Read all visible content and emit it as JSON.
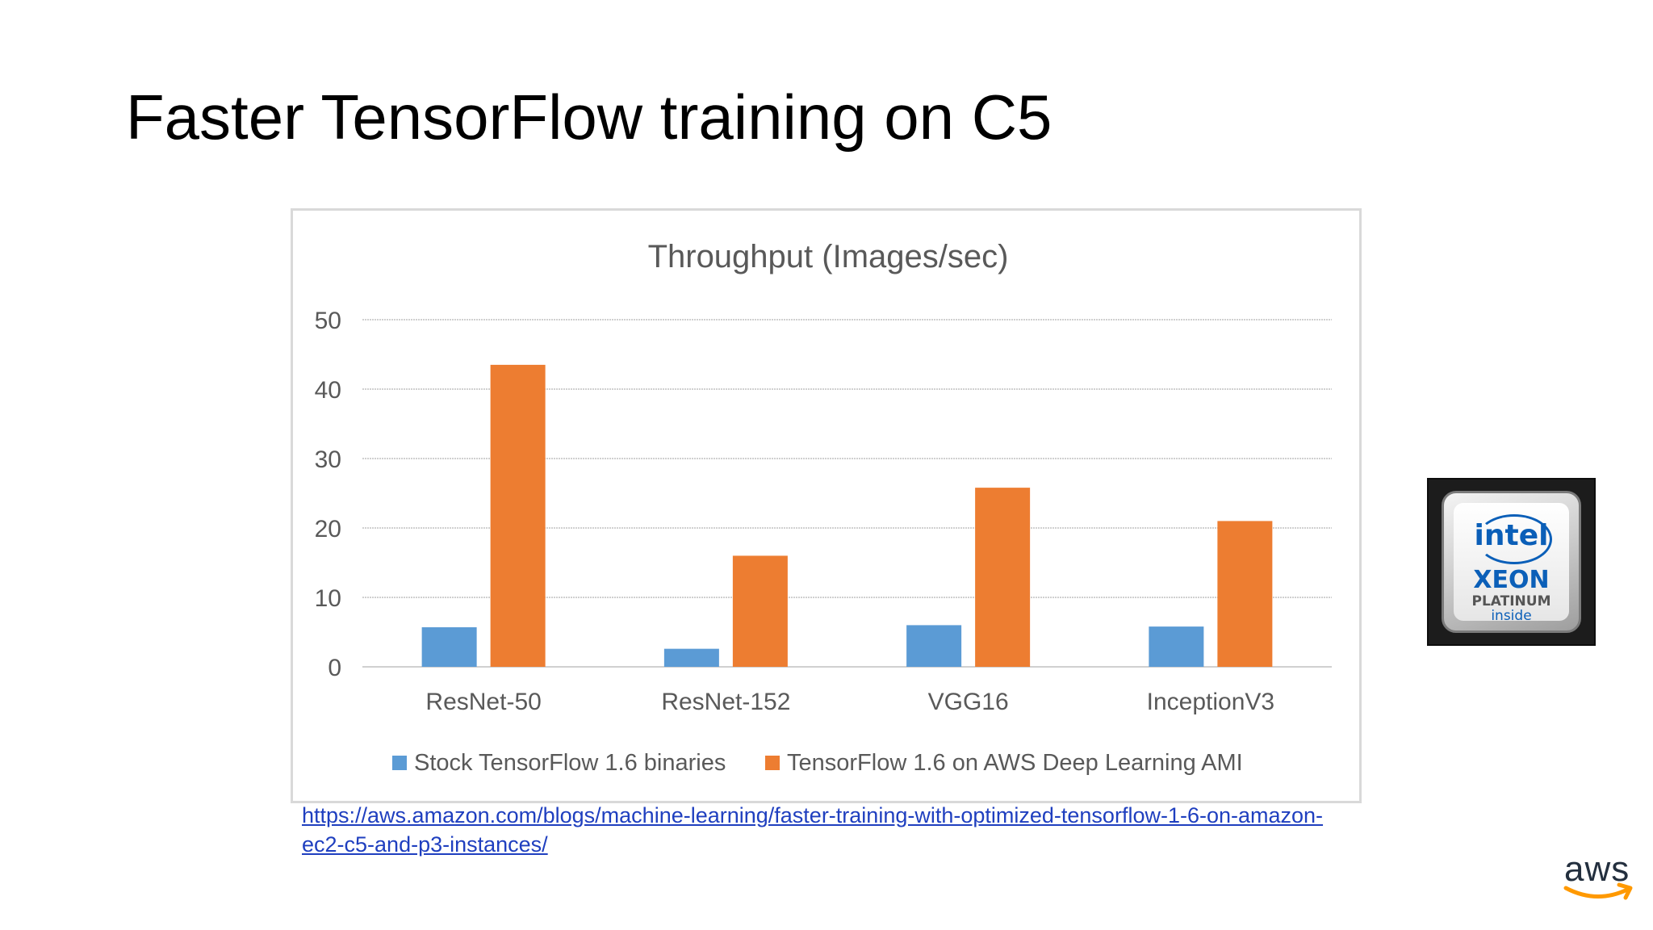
{
  "slide": {
    "title": "Faster TensorFlow training on C5",
    "source_link": "https://aws.amazon.com/blogs/machine-learning/faster-training-with-optimized-tensorflow-1-6-on-amazon-ec2-c5-and-p3-instances/"
  },
  "intel_badge": {
    "brand": "intel",
    "line1": "XEON",
    "line2": "PLATINUM",
    "line3": "inside"
  },
  "aws_logo": {
    "text": "aws",
    "smile_color": "#ff9900"
  },
  "chart_data": {
    "type": "bar",
    "title": "Throughput (Images/sec)",
    "categories": [
      "ResNet-50",
      "ResNet-152",
      "VGG16",
      "InceptionV3"
    ],
    "series": [
      {
        "name": "Stock TensorFlow 1.6 binaries",
        "color": "#5b9bd5",
        "values": [
          5.7,
          2.6,
          6.0,
          5.8
        ]
      },
      {
        "name": "TensorFlow 1.6 on AWS Deep Learning AMI",
        "color": "#ed7d31",
        "values": [
          43.5,
          16.0,
          25.8,
          21.0
        ]
      }
    ],
    "y_ticks": [
      "0",
      "10",
      "20",
      "30",
      "40",
      "50"
    ],
    "ylim": [
      0,
      50
    ],
    "grid": true,
    "legend_position": "bottom"
  }
}
